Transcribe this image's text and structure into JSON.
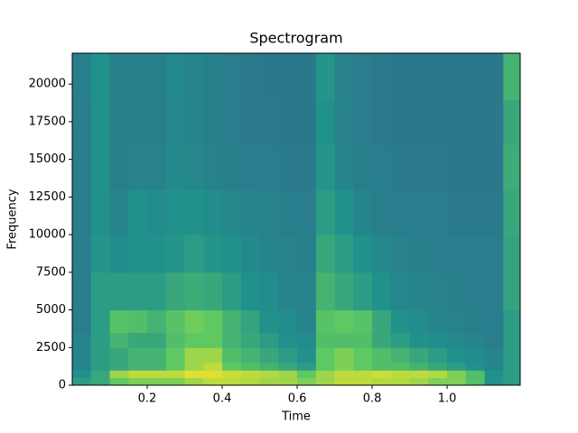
{
  "chart_data": {
    "type": "heatmap",
    "title": "Spectrogram",
    "xlabel": "Time",
    "ylabel": "Frequency",
    "colormap": "viridis",
    "clim": [
      0,
      1
    ],
    "x": [
      0,
      0.05,
      0.1,
      0.15,
      0.2,
      0.25,
      0.3,
      0.35,
      0.4,
      0.45,
      0.5,
      0.55,
      0.6,
      0.65,
      0.7,
      0.75,
      0.8,
      0.85,
      0.9,
      0.95,
      1.0,
      1.05,
      1.1,
      1.15,
      1.195
    ],
    "y": [
      0,
      500,
      1000,
      1500,
      2500,
      3500,
      5000,
      7500,
      10000,
      13000,
      16000,
      19000,
      22050
    ],
    "values": [
      [
        0.55,
        0.6,
        0.75,
        0.8,
        0.8,
        0.8,
        0.85,
        0.9,
        0.9,
        0.88,
        0.85,
        0.85,
        0.8,
        0.85,
        0.9,
        0.9,
        0.88,
        0.88,
        0.85,
        0.8,
        0.8,
        0.7,
        0.5,
        0.55
      ],
      [
        0.5,
        0.6,
        0.85,
        0.9,
        0.9,
        0.9,
        0.95,
        0.95,
        0.92,
        0.9,
        0.88,
        0.85,
        0.75,
        0.85,
        0.9,
        0.9,
        0.92,
        0.9,
        0.9,
        0.88,
        0.8,
        0.7,
        0.5,
        0.55
      ],
      [
        0.45,
        0.55,
        0.6,
        0.65,
        0.65,
        0.75,
        0.85,
        0.9,
        0.75,
        0.7,
        0.65,
        0.6,
        0.55,
        0.75,
        0.8,
        0.75,
        0.7,
        0.7,
        0.65,
        0.6,
        0.55,
        0.5,
        0.45,
        0.55
      ],
      [
        0.45,
        0.55,
        0.6,
        0.65,
        0.65,
        0.75,
        0.85,
        0.85,
        0.7,
        0.65,
        0.6,
        0.55,
        0.5,
        0.75,
        0.8,
        0.75,
        0.7,
        0.65,
        0.6,
        0.55,
        0.5,
        0.48,
        0.45,
        0.55
      ],
      [
        0.45,
        0.55,
        0.65,
        0.6,
        0.6,
        0.7,
        0.75,
        0.75,
        0.65,
        0.6,
        0.55,
        0.5,
        0.48,
        0.7,
        0.7,
        0.7,
        0.6,
        0.55,
        0.5,
        0.48,
        0.46,
        0.45,
        0.42,
        0.55
      ],
      [
        0.42,
        0.55,
        0.72,
        0.7,
        0.65,
        0.72,
        0.78,
        0.75,
        0.65,
        0.58,
        0.5,
        0.48,
        0.45,
        0.72,
        0.75,
        0.72,
        0.6,
        0.5,
        0.48,
        0.45,
        0.44,
        0.43,
        0.42,
        0.55
      ],
      [
        0.42,
        0.55,
        0.55,
        0.55,
        0.55,
        0.6,
        0.62,
        0.6,
        0.55,
        0.5,
        0.48,
        0.45,
        0.44,
        0.65,
        0.6,
        0.55,
        0.5,
        0.46,
        0.45,
        0.44,
        0.43,
        0.42,
        0.42,
        0.58
      ],
      [
        0.42,
        0.52,
        0.48,
        0.5,
        0.5,
        0.52,
        0.55,
        0.52,
        0.5,
        0.47,
        0.45,
        0.44,
        0.43,
        0.6,
        0.55,
        0.5,
        0.46,
        0.44,
        0.43,
        0.42,
        0.42,
        0.42,
        0.42,
        0.58
      ],
      [
        0.42,
        0.5,
        0.45,
        0.5,
        0.48,
        0.5,
        0.5,
        0.48,
        0.46,
        0.45,
        0.44,
        0.43,
        0.42,
        0.55,
        0.5,
        0.45,
        0.43,
        0.42,
        0.42,
        0.42,
        0.41,
        0.41,
        0.41,
        0.6
      ],
      [
        0.42,
        0.5,
        0.43,
        0.44,
        0.44,
        0.47,
        0.46,
        0.44,
        0.43,
        0.42,
        0.42,
        0.41,
        0.41,
        0.52,
        0.45,
        0.43,
        0.42,
        0.41,
        0.41,
        0.41,
        0.4,
        0.4,
        0.4,
        0.62
      ],
      [
        0.42,
        0.5,
        0.43,
        0.43,
        0.43,
        0.46,
        0.45,
        0.43,
        0.42,
        0.41,
        0.41,
        0.4,
        0.4,
        0.5,
        0.44,
        0.42,
        0.41,
        0.4,
        0.4,
        0.4,
        0.4,
        0.4,
        0.4,
        0.6
      ],
      [
        0.43,
        0.5,
        0.43,
        0.43,
        0.43,
        0.47,
        0.45,
        0.43,
        0.42,
        0.41,
        0.4,
        0.4,
        0.4,
        0.52,
        0.44,
        0.42,
        0.41,
        0.4,
        0.4,
        0.4,
        0.4,
        0.4,
        0.4,
        0.65
      ]
    ],
    "xlim": [
      0,
      1.195
    ],
    "ylim": [
      0,
      22050
    ],
    "xticks": [
      0.2,
      0.4,
      0.6,
      0.8,
      {
        "value": 1,
        "label": "1.0"
      }
    ],
    "yticks": [
      0,
      2500,
      5000,
      7500,
      10000,
      12500,
      15000,
      17500,
      20000
    ]
  }
}
